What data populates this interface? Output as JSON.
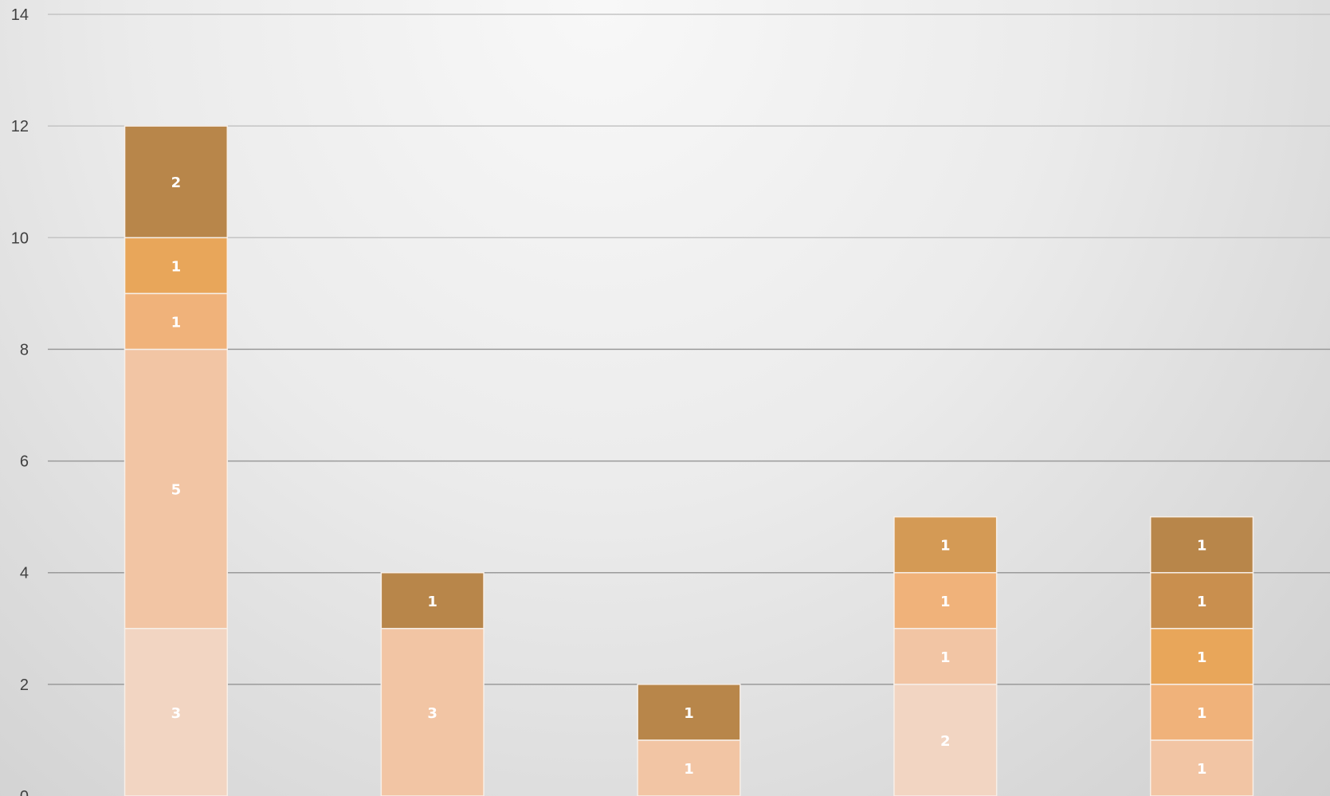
{
  "chart_data": {
    "type": "bar",
    "stacked": true,
    "ylim": [
      0,
      14
    ],
    "yticks": [
      0,
      2,
      4,
      6,
      8,
      10,
      12,
      14
    ],
    "grid": true,
    "legend": "none",
    "categories": [
      "",
      "",
      "",
      "",
      ""
    ],
    "segments": [
      [
        {
          "value": 3,
          "color": "#f2d5c2"
        },
        {
          "value": 5,
          "color": "#f2c5a4"
        },
        {
          "value": 1,
          "color": "#f0b27a"
        },
        {
          "value": 1,
          "color": "#e8a65a"
        },
        {
          "value": 2,
          "color": "#b8864a"
        }
      ],
      [
        {
          "value": 3,
          "color": "#f2c5a4"
        },
        {
          "value": 1,
          "color": "#b8864a"
        }
      ],
      [
        {
          "value": 1,
          "color": "#f2c5a4"
        },
        {
          "value": 1,
          "color": "#b8864a"
        }
      ],
      [
        {
          "value": 2,
          "color": "#f2d5c2"
        },
        {
          "value": 1,
          "color": "#f2c5a4"
        },
        {
          "value": 1,
          "color": "#f0b27a"
        },
        {
          "value": 1,
          "color": "#d49a55"
        }
      ],
      [
        {
          "value": 1,
          "color": "#f2c5a4"
        },
        {
          "value": 1,
          "color": "#f0b27a"
        },
        {
          "value": 1,
          "color": "#e8a65a"
        },
        {
          "value": 1,
          "color": "#c98f4e"
        },
        {
          "value": 1,
          "color": "#b8864a"
        }
      ]
    ]
  }
}
